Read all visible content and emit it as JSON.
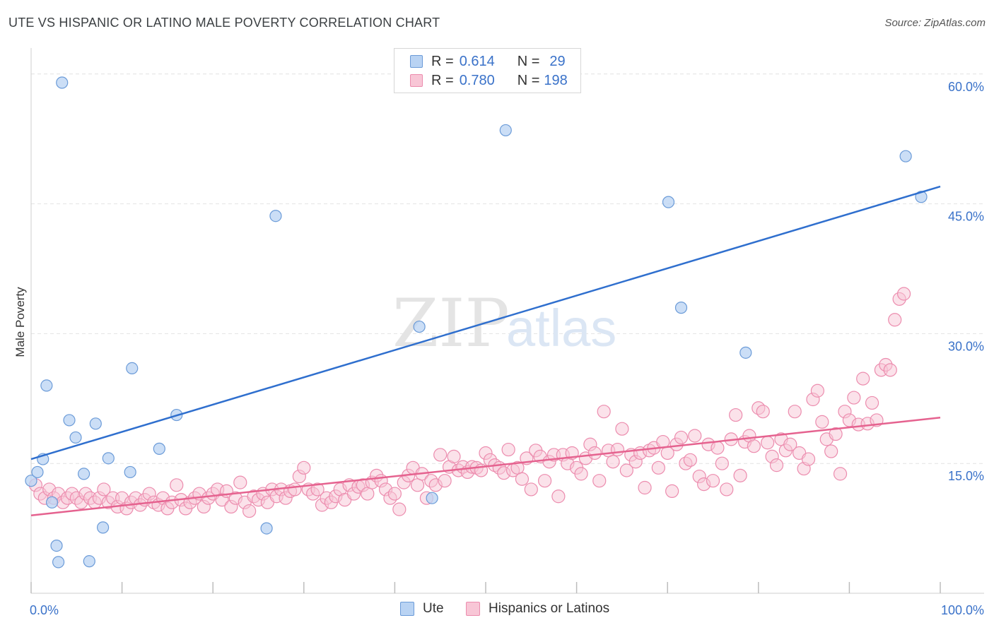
{
  "header": {
    "title": "UTE VS HISPANIC OR LATINO MALE POVERTY CORRELATION CHART",
    "source": "Source: ZipAtlas.com"
  },
  "watermark": {
    "zip": "ZIP",
    "atlas": "atlas"
  },
  "stats": {
    "ute": {
      "r_label": "R =",
      "r_value": "0.614",
      "n_label": "N =",
      "n_value": "29"
    },
    "hispanic": {
      "r_label": "R =",
      "r_value": "0.780",
      "n_label": "N =",
      "n_value": "198"
    }
  },
  "legend": {
    "ute": "Ute",
    "hispanic": "Hispanics or Latinos"
  },
  "colors": {
    "ute_fill": "#b9d3f3",
    "ute_stroke": "#6b9bd8",
    "ute_line": "#2f6fce",
    "hisp_fill": "#f8c6d6",
    "hisp_stroke": "#ec8cae",
    "hisp_line": "#e5628f",
    "tick_text": "#3a72c9",
    "grid": "#e2e2e2"
  },
  "chart_data": {
    "type": "scatter",
    "title": "UTE VS HISPANIC OR LATINO MALE POVERTY CORRELATION CHART",
    "xlabel": "",
    "ylabel": "Male Poverty",
    "xlim": [
      0,
      100
    ],
    "ylim": [
      0,
      63
    ],
    "x_tick_labels": [
      "0.0%",
      "100.0%"
    ],
    "y_ticks": [
      15,
      30,
      45,
      60
    ],
    "y_tick_labels": [
      "15.0%",
      "30.0%",
      "45.0%",
      "60.0%"
    ],
    "grid": "horizontal dashed",
    "legend_position": "bottom-center",
    "series": [
      {
        "name": "Ute",
        "r": 0.614,
        "n": 29,
        "trend": [
          [
            0,
            15.5
          ],
          [
            100,
            47.0
          ]
        ],
        "points": [
          [
            0.0,
            13.0
          ],
          [
            0.7,
            14.0
          ],
          [
            1.3,
            15.5
          ],
          [
            1.7,
            24.0
          ],
          [
            2.3,
            10.5
          ],
          [
            2.8,
            5.5
          ],
          [
            3.4,
            59.0
          ],
          [
            4.2,
            20.0
          ],
          [
            4.9,
            18.0
          ],
          [
            5.8,
            13.8
          ],
          [
            7.1,
            19.6
          ],
          [
            7.9,
            7.6
          ],
          [
            8.5,
            15.6
          ],
          [
            10.9,
            14.0
          ],
          [
            11.1,
            26.0
          ],
          [
            14.1,
            16.7
          ],
          [
            16.0,
            20.6
          ],
          [
            25.9,
            7.5
          ],
          [
            26.9,
            43.6
          ],
          [
            42.7,
            30.8
          ],
          [
            44.1,
            11.0
          ],
          [
            52.2,
            53.5
          ],
          [
            70.1,
            45.2
          ],
          [
            71.5,
            33.0
          ],
          [
            78.6,
            27.8
          ],
          [
            96.2,
            50.5
          ],
          [
            97.9,
            45.8
          ],
          [
            3.0,
            3.6
          ],
          [
            6.4,
            3.7
          ]
        ]
      },
      {
        "name": "Hispanics or Latinos",
        "r": 0.78,
        "n": 198,
        "trend": [
          [
            0,
            9.0
          ],
          [
            100,
            20.3
          ]
        ],
        "points": [
          [
            0.5,
            12.5
          ],
          [
            1.0,
            11.5
          ],
          [
            1.5,
            11.0
          ],
          [
            2.0,
            12.0
          ],
          [
            2.5,
            11.0
          ],
          [
            3.0,
            11.5
          ],
          [
            3.5,
            10.5
          ],
          [
            4.0,
            11.0
          ],
          [
            4.5,
            11.5
          ],
          [
            5.0,
            11.0
          ],
          [
            5.5,
            10.5
          ],
          [
            6.0,
            11.5
          ],
          [
            6.5,
            11.0
          ],
          [
            7.0,
            10.5
          ],
          [
            7.5,
            11.0
          ],
          [
            8.0,
            12.0
          ],
          [
            8.5,
            10.5
          ],
          [
            9.0,
            11.0
          ],
          [
            9.5,
            10.0
          ],
          [
            10.0,
            11.0
          ],
          [
            10.5,
            9.8
          ],
          [
            11.0,
            10.5
          ],
          [
            11.5,
            11.0
          ],
          [
            12.0,
            10.2
          ],
          [
            12.5,
            10.8
          ],
          [
            13.0,
            11.5
          ],
          [
            13.5,
            10.5
          ],
          [
            14.0,
            10.2
          ],
          [
            14.5,
            11.0
          ],
          [
            15.0,
            9.8
          ],
          [
            15.5,
            10.5
          ],
          [
            16.0,
            12.5
          ],
          [
            16.5,
            10.8
          ],
          [
            17.0,
            9.8
          ],
          [
            17.5,
            10.5
          ],
          [
            18.0,
            11.0
          ],
          [
            18.5,
            11.5
          ],
          [
            19.0,
            10.0
          ],
          [
            19.5,
            11.0
          ],
          [
            20.0,
            11.5
          ],
          [
            20.5,
            12.0
          ],
          [
            21.0,
            10.8
          ],
          [
            21.5,
            11.8
          ],
          [
            22.0,
            10.0
          ],
          [
            22.5,
            11.0
          ],
          [
            23.0,
            12.8
          ],
          [
            23.5,
            10.5
          ],
          [
            24.0,
            9.5
          ],
          [
            24.5,
            11.2
          ],
          [
            25.0,
            10.8
          ],
          [
            25.5,
            11.5
          ],
          [
            26.0,
            10.5
          ],
          [
            26.5,
            12.0
          ],
          [
            27.0,
            11.2
          ],
          [
            27.5,
            12.0
          ],
          [
            28.0,
            11.0
          ],
          [
            28.5,
            11.8
          ],
          [
            29.0,
            12.0
          ],
          [
            29.5,
            13.5
          ],
          [
            30.0,
            14.5
          ],
          [
            30.5,
            12.0
          ],
          [
            31.0,
            11.5
          ],
          [
            31.5,
            12.0
          ],
          [
            32.0,
            10.2
          ],
          [
            32.5,
            11.0
          ],
          [
            33.0,
            10.5
          ],
          [
            33.5,
            11.2
          ],
          [
            34.0,
            12.0
          ],
          [
            34.5,
            10.8
          ],
          [
            35.0,
            12.5
          ],
          [
            35.5,
            11.5
          ],
          [
            36.0,
            12.3
          ],
          [
            36.5,
            12.5
          ],
          [
            37.0,
            11.5
          ],
          [
            37.5,
            12.8
          ],
          [
            38.0,
            13.6
          ],
          [
            38.5,
            13.0
          ],
          [
            39.0,
            12.0
          ],
          [
            39.5,
            11.0
          ],
          [
            40.0,
            11.5
          ],
          [
            40.5,
            9.7
          ],
          [
            41.0,
            12.8
          ],
          [
            41.5,
            13.6
          ],
          [
            42.0,
            14.5
          ],
          [
            42.5,
            12.5
          ],
          [
            43.0,
            13.8
          ],
          [
            43.5,
            11.0
          ],
          [
            44.0,
            13.0
          ],
          [
            44.5,
            12.5
          ],
          [
            45.0,
            16.0
          ],
          [
            45.5,
            13.0
          ],
          [
            46.0,
            14.6
          ],
          [
            46.5,
            15.8
          ],
          [
            47.0,
            14.2
          ],
          [
            47.5,
            14.6
          ],
          [
            48.0,
            14.0
          ],
          [
            48.5,
            14.6
          ],
          [
            49.0,
            14.5
          ],
          [
            49.5,
            14.2
          ],
          [
            50.0,
            16.2
          ],
          [
            50.5,
            15.4
          ],
          [
            51.0,
            14.8
          ],
          [
            51.5,
            14.5
          ],
          [
            52.0,
            13.9
          ],
          [
            52.5,
            16.6
          ],
          [
            53.0,
            14.2
          ],
          [
            53.5,
            14.5
          ],
          [
            54.0,
            13.2
          ],
          [
            54.5,
            15.6
          ],
          [
            55.0,
            12.0
          ],
          [
            55.5,
            16.5
          ],
          [
            56.0,
            15.8
          ],
          [
            56.5,
            13.0
          ],
          [
            57.0,
            15.2
          ],
          [
            57.5,
            16.0
          ],
          [
            58.0,
            11.2
          ],
          [
            58.5,
            16.0
          ],
          [
            59.0,
            15.0
          ],
          [
            59.5,
            16.2
          ],
          [
            60.0,
            14.5
          ],
          [
            60.5,
            13.8
          ],
          [
            61.0,
            15.6
          ],
          [
            61.5,
            17.2
          ],
          [
            62.0,
            16.2
          ],
          [
            62.5,
            13.0
          ],
          [
            63.0,
            21.0
          ],
          [
            63.5,
            16.5
          ],
          [
            64.0,
            15.2
          ],
          [
            64.5,
            16.6
          ],
          [
            65.0,
            19.0
          ],
          [
            65.5,
            14.2
          ],
          [
            66.0,
            16.0
          ],
          [
            66.5,
            15.2
          ],
          [
            67.0,
            16.2
          ],
          [
            67.5,
            12.2
          ],
          [
            68.0,
            16.5
          ],
          [
            68.5,
            16.8
          ],
          [
            69.0,
            14.5
          ],
          [
            69.5,
            17.5
          ],
          [
            70.0,
            16.2
          ],
          [
            70.5,
            11.8
          ],
          [
            71.0,
            17.2
          ],
          [
            71.5,
            18.0
          ],
          [
            72.0,
            15.0
          ],
          [
            72.5,
            15.4
          ],
          [
            73.0,
            18.2
          ],
          [
            73.5,
            13.5
          ],
          [
            74.0,
            12.6
          ],
          [
            74.5,
            17.2
          ],
          [
            75.0,
            13.0
          ],
          [
            75.5,
            16.8
          ],
          [
            76.0,
            15.0
          ],
          [
            76.5,
            12.0
          ],
          [
            77.0,
            17.8
          ],
          [
            77.5,
            20.6
          ],
          [
            78.0,
            13.6
          ],
          [
            78.5,
            17.5
          ],
          [
            79.0,
            18.2
          ],
          [
            79.5,
            17.0
          ],
          [
            80.0,
            21.4
          ],
          [
            80.5,
            21.0
          ],
          [
            81.0,
            17.4
          ],
          [
            81.5,
            15.8
          ],
          [
            82.0,
            14.8
          ],
          [
            82.5,
            17.8
          ],
          [
            83.0,
            16.5
          ],
          [
            83.5,
            17.2
          ],
          [
            84.0,
            21.0
          ],
          [
            84.5,
            16.2
          ],
          [
            85.0,
            14.4
          ],
          [
            85.5,
            15.5
          ],
          [
            86.0,
            22.4
          ],
          [
            86.5,
            23.4
          ],
          [
            87.0,
            19.8
          ],
          [
            87.5,
            17.8
          ],
          [
            88.0,
            16.4
          ],
          [
            88.5,
            18.4
          ],
          [
            89.0,
            13.8
          ],
          [
            89.5,
            21.0
          ],
          [
            90.0,
            20.0
          ],
          [
            90.5,
            22.6
          ],
          [
            91.0,
            19.5
          ],
          [
            91.5,
            24.8
          ],
          [
            92.0,
            19.6
          ],
          [
            92.5,
            22.0
          ],
          [
            93.0,
            20.0
          ],
          [
            93.5,
            25.8
          ],
          [
            94.0,
            26.4
          ],
          [
            94.5,
            25.8
          ],
          [
            95.0,
            31.6
          ],
          [
            95.5,
            34.0
          ],
          [
            96.0,
            34.6
          ]
        ]
      }
    ]
  }
}
